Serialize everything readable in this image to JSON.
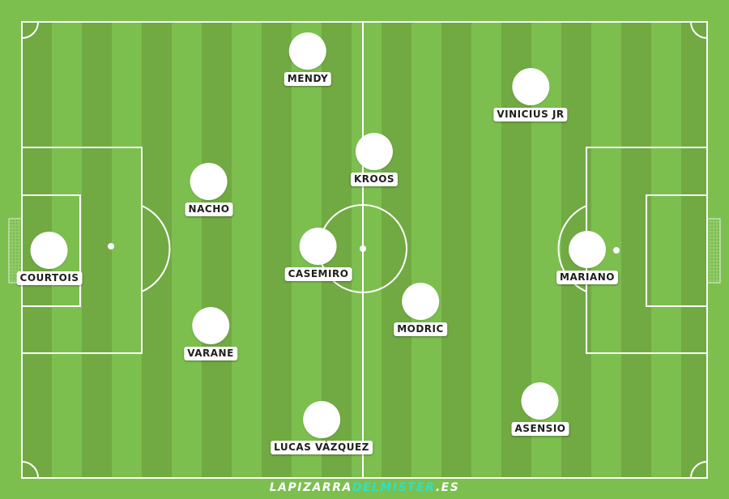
{
  "colors": {
    "grass_light": "#7cbf4f",
    "grass_dark": "#71a943",
    "lines": "#ffffff",
    "label_text": "#1e1e1e",
    "brand_accent": "#2fe0c8"
  },
  "players": [
    {
      "id": "courtois",
      "name": "COURTOIS"
    },
    {
      "id": "mendy",
      "name": "MENDY"
    },
    {
      "id": "nacho",
      "name": "NACHO"
    },
    {
      "id": "varane",
      "name": "VARANE"
    },
    {
      "id": "lucas-vazquez",
      "name": "LUCAS VÁZQUEZ"
    },
    {
      "id": "casemiro",
      "name": "CASEMIRO"
    },
    {
      "id": "kroos",
      "name": "KROOS"
    },
    {
      "id": "modric",
      "name": "MODRIC"
    },
    {
      "id": "vinicius-jr",
      "name": "VINICIUS JR"
    },
    {
      "id": "mariano",
      "name": "MARIANO"
    },
    {
      "id": "asensio",
      "name": "ASENSIO"
    }
  ],
  "brand": {
    "part1": "LAPIZARRA",
    "part2": "DELMISTER",
    "part3": ".ES"
  }
}
